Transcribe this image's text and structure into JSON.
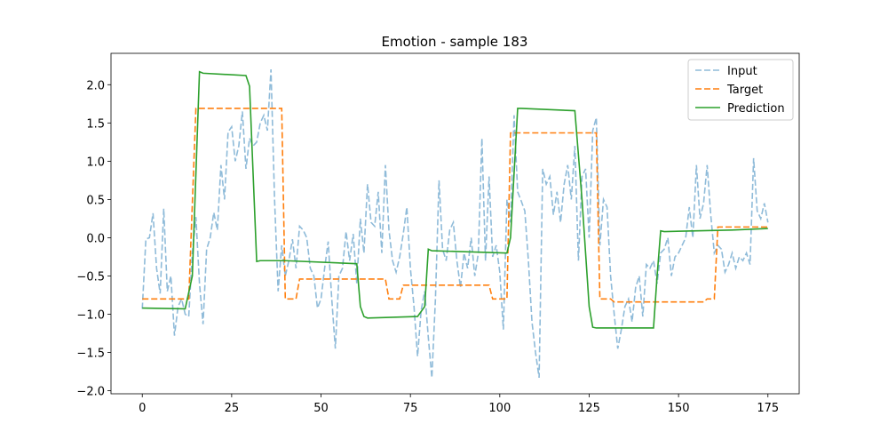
{
  "chart_data": {
    "type": "line",
    "title": "Emotion - sample 183",
    "xlim": [
      -8.75,
      183.75
    ],
    "xticks": [
      0,
      25,
      50,
      75,
      100,
      125,
      150,
      175
    ],
    "ylim": [
      -2.04,
      2.41
    ],
    "yticks": [
      {
        "value": -2.0,
        "label": "−2.0"
      },
      {
        "value": -1.5,
        "label": "−1.5"
      },
      {
        "value": -1.0,
        "label": "−1.0"
      },
      {
        "value": -0.5,
        "label": "−0.5"
      },
      {
        "value": 0.0,
        "label": "0.0"
      },
      {
        "value": 0.5,
        "label": "0.5"
      },
      {
        "value": 1.0,
        "label": "1.0"
      },
      {
        "value": 1.5,
        "label": "1.5"
      },
      {
        "value": 2.0,
        "label": "2.0"
      }
    ],
    "legend": "upper right",
    "series": [
      {
        "name": "Input",
        "color": "#1f77b4",
        "opacity": 0.5,
        "dash": "dashed",
        "x": [
          0,
          1,
          2,
          3,
          4,
          5,
          6,
          7,
          8,
          9,
          10,
          11,
          12,
          13,
          14,
          15,
          16,
          17,
          18,
          19,
          20,
          21,
          22,
          23,
          24,
          25,
          26,
          27,
          28,
          29,
          30,
          31,
          32,
          33,
          34,
          35,
          36,
          37,
          38,
          39,
          40,
          41,
          42,
          43,
          44,
          45,
          46,
          47,
          48,
          49,
          50,
          51,
          52,
          53,
          54,
          55,
          56,
          57,
          58,
          59,
          60,
          61,
          62,
          63,
          64,
          65,
          66,
          67,
          68,
          69,
          70,
          71,
          72,
          73,
          74,
          75,
          76,
          77,
          78,
          79,
          80,
          81,
          82,
          83,
          84,
          85,
          86,
          87,
          88,
          89,
          90,
          91,
          92,
          93,
          94,
          95,
          96,
          97,
          98,
          99,
          100,
          101,
          102,
          103,
          104,
          105,
          106,
          107,
          108,
          109,
          110,
          111,
          112,
          113,
          114,
          115,
          116,
          117,
          118,
          119,
          120,
          121,
          122,
          123,
          124,
          125,
          126,
          127,
          128,
          129,
          130,
          131,
          132,
          133,
          134,
          135,
          136,
          137,
          138,
          139,
          140,
          141,
          142,
          143,
          144,
          145,
          146,
          147,
          148,
          149,
          150,
          151,
          152,
          153,
          154,
          155,
          156,
          157,
          158,
          159,
          160,
          161,
          162,
          163,
          164,
          165,
          166,
          167,
          168,
          169,
          170,
          171,
          172,
          173,
          174,
          175
        ],
        "values": [
          -0.93,
          -0.02,
          0.0,
          0.32,
          -0.4,
          -0.73,
          0.38,
          -0.7,
          -0.5,
          -1.28,
          -0.9,
          -0.8,
          -1.0,
          -1.03,
          -0.2,
          0.27,
          -0.6,
          -1.13,
          -0.15,
          0.0,
          0.33,
          0.1,
          0.95,
          0.5,
          1.38,
          1.45,
          1.0,
          1.2,
          1.65,
          0.9,
          1.3,
          1.2,
          1.25,
          1.5,
          1.6,
          1.4,
          2.2,
          0.5,
          -0.7,
          -0.1,
          -0.5,
          -0.3,
          -0.02,
          -0.4,
          0.15,
          0.1,
          0.0,
          -0.4,
          -0.5,
          -0.92,
          -0.8,
          -0.4,
          -0.05,
          -0.8,
          -1.45,
          -0.5,
          -0.4,
          0.08,
          -0.3,
          0.05,
          -0.6,
          0.25,
          -0.2,
          0.7,
          0.2,
          0.15,
          0.6,
          -0.2,
          0.95,
          0.1,
          -0.3,
          -0.45,
          -0.25,
          0.05,
          0.4,
          -0.4,
          -0.9,
          -1.55,
          -0.95,
          -0.7,
          -1.3,
          -1.83,
          -0.8,
          0.75,
          -0.15,
          -0.3,
          0.1,
          0.2,
          -0.3,
          -0.65,
          -0.2,
          -0.4,
          0.0,
          -0.5,
          -0.2,
          1.3,
          -0.3,
          0.8,
          -0.25,
          -0.1,
          -0.45,
          -1.2,
          0.5,
          0.2,
          1.6,
          0.6,
          0.48,
          0.35,
          -0.3,
          -1.1,
          -1.5,
          -1.83,
          0.9,
          0.7,
          0.8,
          0.3,
          0.6,
          0.2,
          0.7,
          0.95,
          0.5,
          1.2,
          -0.3,
          0.8,
          0.9,
          0.0,
          1.4,
          1.57,
          -0.1,
          0.5,
          0.4,
          -0.5,
          -1.0,
          -1.45,
          -1.2,
          -0.9,
          -0.8,
          -1.1,
          -0.65,
          -0.5,
          -1.03,
          -0.35,
          -0.4,
          -0.3,
          -0.6,
          -0.2,
          -0.15,
          0.0,
          -0.5,
          -0.25,
          -0.2,
          -0.1,
          0.0,
          0.4,
          0.0,
          0.95,
          0.25,
          0.45,
          0.95,
          0.3,
          -0.2,
          -0.1,
          -0.15,
          -0.45,
          -0.35,
          -0.2,
          -0.4,
          -0.25,
          -0.3,
          -0.2,
          -0.35,
          1.04,
          0.35,
          0.25,
          0.45,
          0.2
        ]
      },
      {
        "name": "Target",
        "color": "#ff7f0e",
        "opacity": 1,
        "dash": "dashed",
        "x": [
          0,
          13,
          15,
          39,
          40,
          43,
          44,
          68,
          69,
          72,
          73,
          97,
          98,
          102,
          103,
          127,
          128,
          131,
          132,
          157,
          158,
          160,
          161,
          175
        ],
        "values": [
          -0.8,
          -0.8,
          1.69,
          1.69,
          -0.8,
          -0.8,
          -0.54,
          -0.54,
          -0.8,
          -0.8,
          -0.62,
          -0.62,
          -0.8,
          -0.8,
          1.37,
          1.37,
          -0.8,
          -0.8,
          -0.84,
          -0.84,
          -0.8,
          -0.8,
          0.14,
          0.14
        ]
      },
      {
        "name": "Prediction",
        "color": "#2ca02c",
        "opacity": 1,
        "dash": "solid",
        "x": [
          0,
          12,
          14,
          16,
          17,
          29,
          30,
          32,
          33,
          40,
          60,
          61,
          62,
          63,
          77,
          79,
          80,
          81,
          102,
          103,
          105,
          106,
          121,
          123,
          125,
          126,
          127,
          143,
          144,
          145,
          146,
          165,
          175
        ],
        "values": [
          -0.92,
          -0.93,
          -0.5,
          2.17,
          2.15,
          2.12,
          1.98,
          -0.31,
          -0.3,
          -0.3,
          -0.34,
          -0.9,
          -1.03,
          -1.05,
          -1.03,
          -0.9,
          -0.15,
          -0.17,
          -0.2,
          0.0,
          1.69,
          1.69,
          1.66,
          0.5,
          -0.9,
          -1.17,
          -1.18,
          -1.18,
          -0.5,
          0.09,
          0.08,
          0.1,
          0.12
        ]
      }
    ]
  }
}
